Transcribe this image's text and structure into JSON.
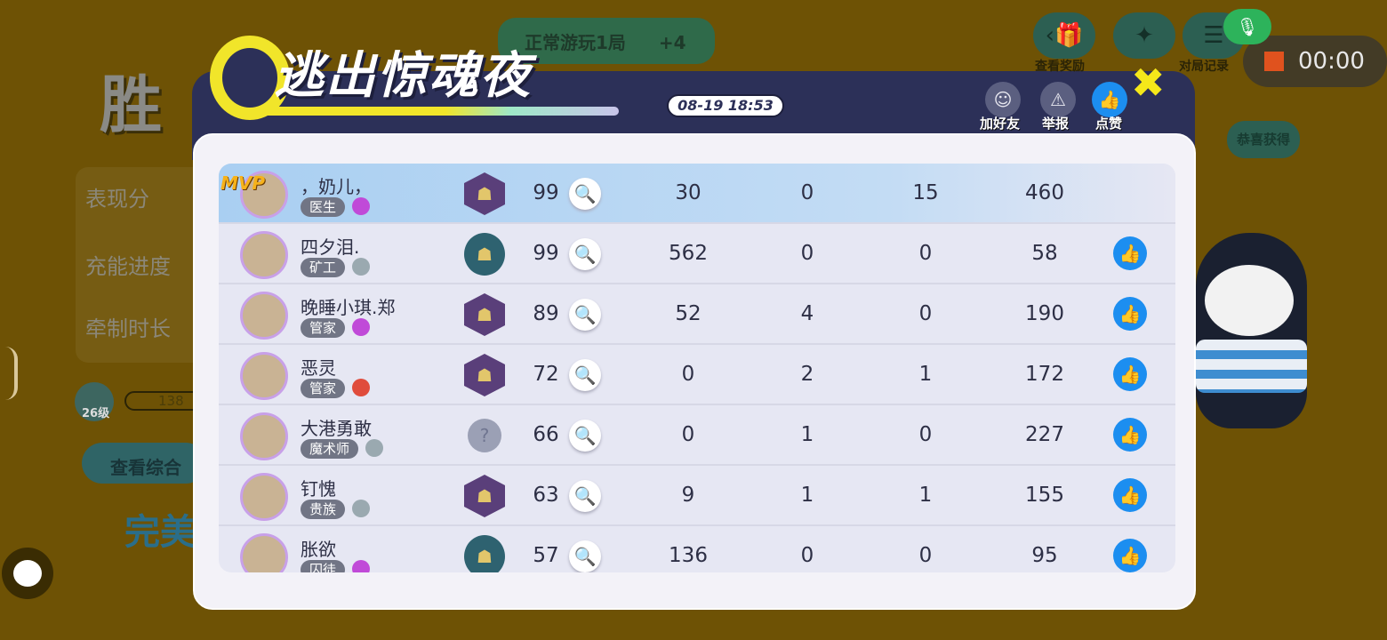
{
  "background": {
    "big_title": "胜",
    "stats": [
      "表现分",
      "充能进度",
      "牵制时长"
    ],
    "level": "26级",
    "exp": "138",
    "view_button": "查看综合",
    "result": "完美",
    "task": "正常游玩1局",
    "task_reward": "+4",
    "top_labels": [
      "查看奖励",
      "",
      "对局记录"
    ],
    "bubble": "恭喜获得"
  },
  "recorder": {
    "time": "00:00",
    "mic_icon": "mic-icon"
  },
  "dialog": {
    "title": "逃出惊魂夜",
    "datetime": "08-19  18:53",
    "actions": [
      {
        "label": "加好友",
        "icon": "add-friend-icon"
      },
      {
        "label": "举报",
        "icon": "warning-icon"
      },
      {
        "label": "点赞",
        "icon": "thumbs-up-icon"
      }
    ],
    "close_icon": "close-icon"
  },
  "players": [
    {
      "name": "，奶儿，",
      "role": "医生",
      "rank": "purple",
      "mvp": "MVP",
      "score": "99",
      "c1": "30",
      "c2": "0",
      "c3": "15",
      "c4": "460",
      "hunter": "hex"
    },
    {
      "name": "四夕泪.",
      "role": "矿工",
      "rank": "grey",
      "score": "99",
      "c1": "562",
      "c2": "0",
      "c3": "0",
      "c4": "58",
      "hunter": "round"
    },
    {
      "name": "晚睡小琪.郑",
      "role": "管家",
      "rank": "purple",
      "score": "89",
      "c1": "52",
      "c2": "4",
      "c3": "0",
      "c4": "190",
      "hunter": "hex"
    },
    {
      "name": "恶灵",
      "role": "管家",
      "rank": "red",
      "score": "72",
      "c1": "0",
      "c2": "2",
      "c3": "1",
      "c4": "172",
      "hunter": "hex"
    },
    {
      "name": "大港勇敢",
      "role": "魔术师",
      "rank": "grey",
      "score": "66",
      "c1": "0",
      "c2": "1",
      "c3": "0",
      "c4": "227",
      "hunter": "unknown"
    },
    {
      "name": "钉愧",
      "role": "贵族",
      "rank": "grey",
      "score": "63",
      "c1": "9",
      "c2": "1",
      "c3": "1",
      "c4": "155",
      "hunter": "hex"
    },
    {
      "name": "胀欲",
      "role": "囚徒",
      "rank": "purple",
      "score": "57",
      "c1": "136",
      "c2": "0",
      "c3": "0",
      "c4": "95",
      "hunter": "round"
    }
  ],
  "colors": {
    "accent": "#1c8ef0",
    "header": "#2c3058",
    "close": "#f5e81a",
    "background": "#6e5205"
  }
}
